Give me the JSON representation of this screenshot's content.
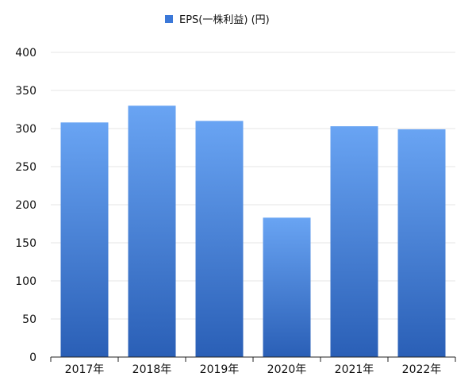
{
  "chart_data": {
    "type": "bar",
    "categories": [
      "2017年",
      "2018年",
      "2019年",
      "2020年",
      "2021年",
      "2022年"
    ],
    "series": [
      {
        "name": "EPS(一株利益) (円)",
        "values": [
          308,
          330,
          310,
          183,
          303,
          299
        ]
      }
    ],
    "title": "",
    "xlabel": "",
    "ylabel": "",
    "ylim": [
      0,
      400
    ],
    "yticks": [
      0,
      50,
      100,
      150,
      200,
      250,
      300,
      350,
      400
    ],
    "grid": true,
    "legend": "top-center",
    "colors": {
      "bar_top": "#69a4f3",
      "bar_bottom": "#2a5fb6",
      "legend_swatch": "#3b78d8",
      "grid": "#e5e5e5",
      "axis": "#222222"
    }
  }
}
